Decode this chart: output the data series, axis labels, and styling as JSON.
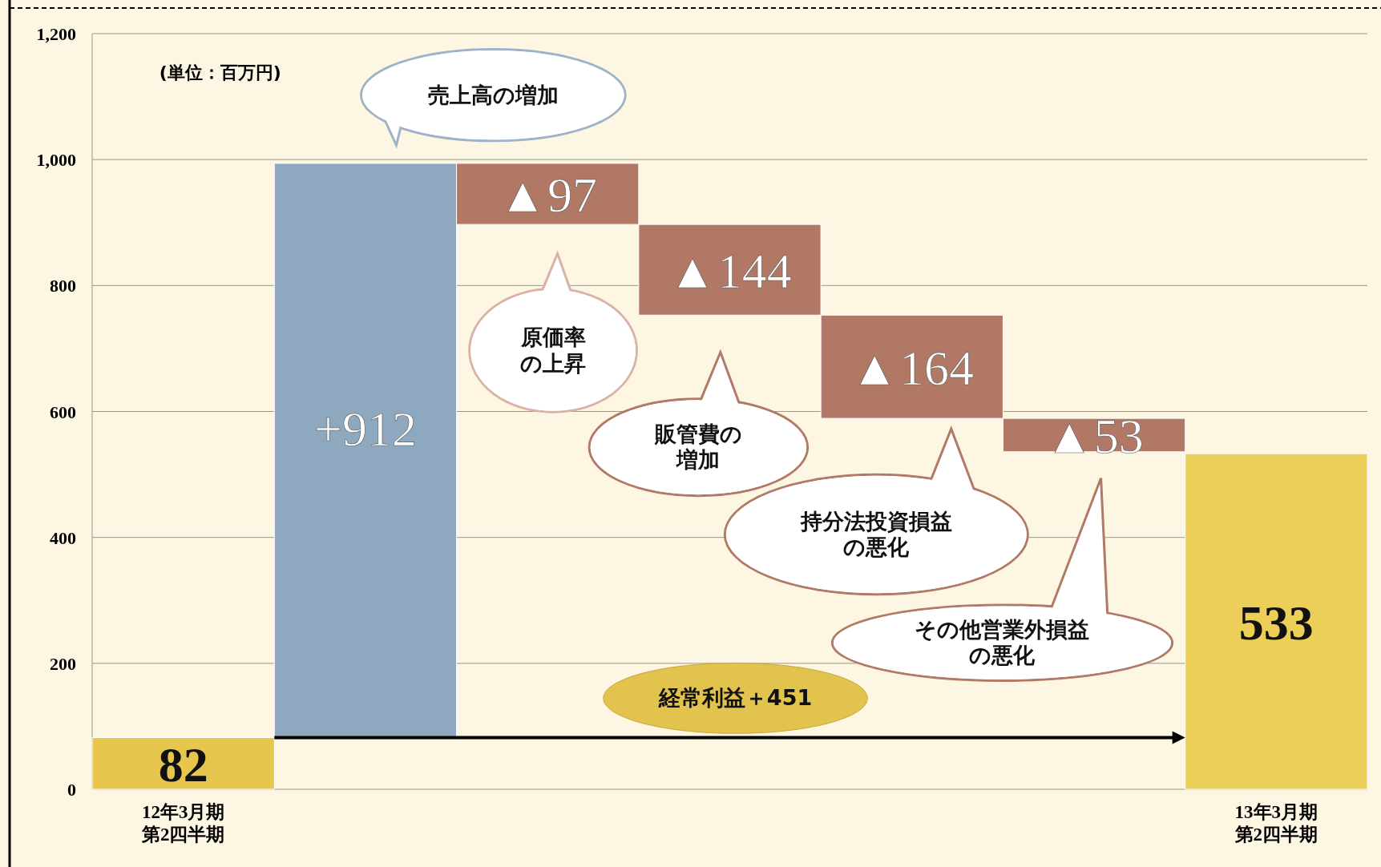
{
  "chart_data": {
    "type": "bar",
    "categories": [
      "12年3月期第2四半期",
      null,
      null,
      null,
      null,
      null,
      "13年3月期第2四半期"
    ],
    "values": [
      82,
      912,
      -97,
      -144,
      -164,
      -53,
      533
    ],
    "base": [
      0,
      82,
      994,
      897,
      753,
      589,
      0
    ],
    "colors": [
      "#e6c64c",
      "#8ea8c0",
      "#b27866",
      "#b27866",
      "#b27866",
      "#b27866",
      "#ebcf58"
    ],
    "value_labels": [
      "82",
      "+912",
      "▲97",
      "▲144",
      "▲164",
      "▲53",
      "533"
    ],
    "ylim": [
      0,
      1200
    ],
    "yticks": [
      0,
      200,
      400,
      600,
      800,
      {
        "value": 1000,
        "label": "1,000"
      },
      {
        "value": 1200,
        "label": "1,200"
      }
    ],
    "grid": "y",
    "annotations": [
      "(単位：百万円)",
      "売上高の増加",
      "原価率の上昇",
      "販管費の増加",
      "持分法投資損益の悪化",
      "その他営業外損益の悪化",
      "経常利益＋451"
    ]
  }
}
